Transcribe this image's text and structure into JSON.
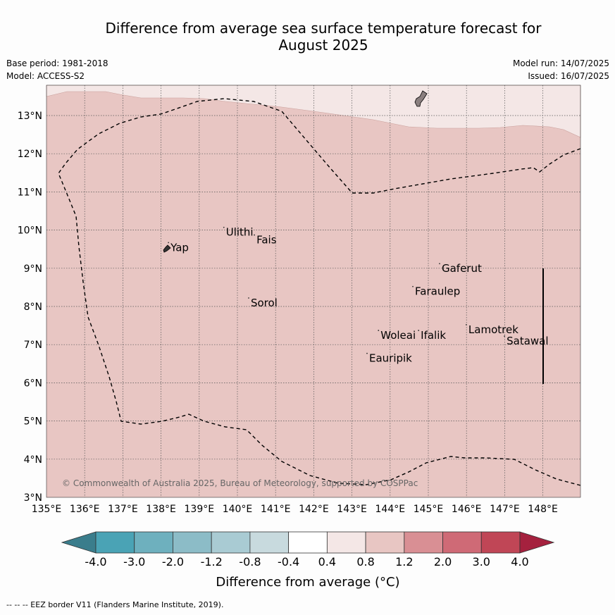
{
  "title_line1": "Difference from average sea surface temperature forecast for",
  "title_line2": "August 2025",
  "base_period": "Base period: 1981-2018",
  "model": "Model: ACCESS-S2",
  "model_run": "Model run: 14/07/2025",
  "issued": "Issued: 16/07/2025",
  "copyright": "© Commonwealth of Australia 2025, Bureau of Meteorology, supported by COSPPac",
  "footnote": "--  --  -- EEZ border V11 (Flanders Marine Institute, 2019).",
  "map": {
    "lon_ticks": [
      "135°E",
      "136°E",
      "137°E",
      "138°E",
      "139°E",
      "140°E",
      "141°E",
      "142°E",
      "143°E",
      "144°E",
      "145°E",
      "146°E",
      "147°E",
      "148°E"
    ],
    "lat_ticks": [
      "3°N",
      "4°N",
      "5°N",
      "6°N",
      "7°N",
      "8°N",
      "9°N",
      "10°N",
      "11°N",
      "12°N",
      "13°N"
    ],
    "places": [
      {
        "name": "Yap",
        "lon": 138.25,
        "lat": 9.45
      },
      {
        "name": "Ulithi",
        "lon": 139.7,
        "lat": 9.85
      },
      {
        "name": "Fais",
        "lon": 140.5,
        "lat": 9.65
      },
      {
        "name": "Sorol",
        "lon": 140.35,
        "lat": 8.0
      },
      {
        "name": "Gaferut",
        "lon": 145.35,
        "lat": 8.9
      },
      {
        "name": "Faraulep",
        "lon": 144.65,
        "lat": 8.3
      },
      {
        "name": "Woleai",
        "lon": 143.75,
        "lat": 7.15
      },
      {
        "name": "Ifalik",
        "lon": 144.8,
        "lat": 7.15
      },
      {
        "name": "Lamotrek",
        "lon": 146.05,
        "lat": 7.3
      },
      {
        "name": "Satawal",
        "lon": 147.05,
        "lat": 7.0
      },
      {
        "name": "Eauripik",
        "lon": 143.45,
        "lat": 6.55
      }
    ]
  },
  "legend": {
    "labels": [
      "-4.0",
      "-3.0",
      "-2.0",
      "-1.2",
      "-0.8",
      "-0.4",
      "0.4",
      "0.8",
      "1.2",
      "2.0",
      "3.0",
      "4.0"
    ],
    "colors": [
      "#3a7d8c",
      "#4aa3b5",
      "#6eb0be",
      "#8cbcc7",
      "#a9cbd3",
      "#c8dade",
      "#ffffff",
      "#f4e7e6",
      "#e8c6c3",
      "#d98f94",
      "#cf6a76",
      "#c04656",
      "#a5213e"
    ],
    "title": "Difference from average (°C)"
  },
  "colors": {
    "field_main": "#e8c6c3",
    "field_north": "#f4e7e6",
    "land": "#8a7f7f"
  }
}
